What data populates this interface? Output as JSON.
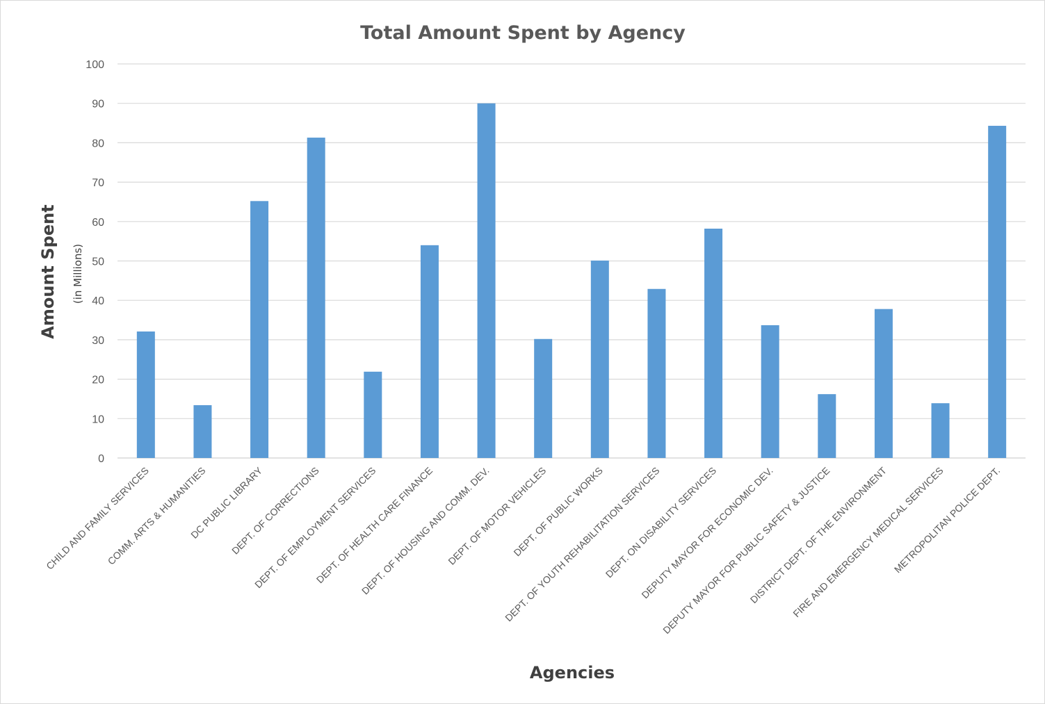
{
  "chart_data": {
    "type": "bar",
    "title": "Total Amount Spent by Agency",
    "xlabel": "Agencies",
    "ylabel": "Amount Spent",
    "ylabel_sub": "(in Millions)",
    "ylim": [
      0,
      100
    ],
    "yticks": [
      0,
      10,
      20,
      30,
      40,
      50,
      60,
      70,
      80,
      90,
      100
    ],
    "grid": true,
    "legend": "none",
    "bar_color": "#5b9bd5",
    "categories": [
      "CHILD AND FAMILY SERVICES",
      "COMM. ARTS & HUMANITIES",
      "DC PUBLIC LIBRARY",
      "DEPT. OF CORRECTIONS",
      "DEPT. OF EMPLOYMENT SERVICES",
      "DEPT. OF HEALTH CARE FINANCE",
      "DEPT. OF HOUSING AND COMM. DEV.",
      "DEPT. OF MOTOR VEHICLES",
      "DEPT. OF PUBLIC WORKS",
      "DEPT. OF YOUTH REHABILITATION SERVICES",
      "DEPT. ON DISABILITY SERVICES",
      "DEPUTY MAYOR FOR ECONOMIC DEV.",
      "DEPUTY MAYOR FOR PUBLIC SAFETY & JUSTICE",
      "DISTRICT DEPT. OF THE ENVIRONMENT",
      "FIRE AND EMERGENCY MEDICAL SERVICES",
      "METROPOLITAN POLICE DEPT."
    ],
    "values": [
      32.1,
      13.4,
      65.2,
      81.3,
      21.9,
      54.0,
      90.0,
      30.2,
      50.1,
      42.9,
      58.2,
      33.7,
      16.2,
      37.8,
      13.9,
      84.3
    ]
  }
}
